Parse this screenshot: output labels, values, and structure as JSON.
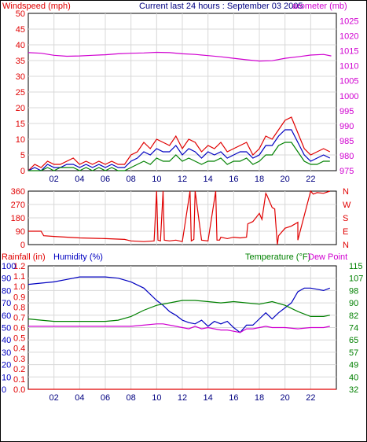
{
  "header": {
    "windspeed_label": "Windspeed (mph)",
    "title": "Current last 24 hours : September 03 2005",
    "barometer_label": "arometer (mb)"
  },
  "colors": {
    "red": "#e00000",
    "blue": "#0000c0",
    "green": "#008000",
    "magenta": "#d000d0",
    "grid": "#d8d8d8"
  },
  "chart_data": [
    {
      "type": "line",
      "name": "wind-barometer",
      "x_ticks": [
        "02",
        "04",
        "06",
        "08",
        "10",
        "12",
        "14",
        "16",
        "18",
        "20",
        "22"
      ],
      "xlim": [
        0,
        24
      ],
      "left_axis": {
        "label": "Windspeed (mph)",
        "ticks": [
          0,
          5,
          10,
          15,
          20,
          25,
          30,
          35,
          40,
          45,
          50
        ],
        "ylim": [
          0,
          50
        ]
      },
      "right_axis": {
        "label": "arometer (mb)",
        "ticks": [
          975,
          980,
          985,
          990,
          995,
          1000,
          1005,
          1010,
          1015,
          1020,
          1025
        ],
        "ylim": [
          975,
          1027.5
        ]
      },
      "series": [
        {
          "color": "#d000d0",
          "axis": "right",
          "x": [
            0,
            1,
            2,
            3,
            4,
            5,
            6,
            7,
            8,
            9,
            10,
            11,
            12,
            13,
            14,
            15,
            16,
            17,
            18,
            19,
            20,
            21,
            22,
            23,
            23.6
          ],
          "y": [
            1014.4,
            1014.2,
            1013.5,
            1013.2,
            1013.3,
            1013.5,
            1013.7,
            1014.0,
            1014.2,
            1014.3,
            1014.5,
            1014.4,
            1014.0,
            1013.8,
            1013.4,
            1013.0,
            1012.5,
            1012.0,
            1011.6,
            1011.7,
            1012.5,
            1013.0,
            1013.6,
            1013.8,
            1013.3
          ]
        },
        {
          "color": "#e00000",
          "axis": "left",
          "x": [
            0,
            0.5,
            1,
            1.5,
            2,
            2.5,
            3,
            3.5,
            4,
            4.5,
            5,
            5.5,
            6,
            6.5,
            7,
            7.5,
            8,
            8.5,
            9,
            9.5,
            10,
            10.5,
            11,
            11.5,
            12,
            12.5,
            13,
            13.5,
            14,
            14.5,
            15,
            15.5,
            16,
            16.5,
            17,
            17.5,
            18,
            18.5,
            19,
            19.5,
            20,
            20.5,
            21,
            21.5,
            22,
            22.5,
            23,
            23.5
          ],
          "y": [
            0,
            2,
            1,
            3,
            2,
            2,
            3,
            4,
            2,
            3,
            2,
            3,
            2,
            3,
            2,
            2,
            5,
            6,
            9,
            7,
            10,
            9,
            8,
            11,
            7,
            10,
            9,
            6,
            8,
            7,
            9,
            6,
            7,
            8,
            9,
            5,
            7,
            11,
            10,
            13,
            16,
            17,
            12,
            7,
            5,
            6,
            7,
            6
          ]
        },
        {
          "color": "#0000c0",
          "axis": "left",
          "x": [
            0,
            0.5,
            1,
            1.5,
            2,
            2.5,
            3,
            3.5,
            4,
            4.5,
            5,
            5.5,
            6,
            6.5,
            7,
            7.5,
            8,
            8.5,
            9,
            9.5,
            10,
            10.5,
            11,
            11.5,
            12,
            12.5,
            13,
            13.5,
            14,
            14.5,
            15,
            15.5,
            16,
            16.5,
            17,
            17.5,
            18,
            18.5,
            19,
            19.5,
            20,
            20.5,
            21,
            21.5,
            22,
            22.5,
            23,
            23.5
          ],
          "y": [
            0,
            1,
            0,
            2,
            1,
            1,
            2,
            2,
            1,
            2,
            1,
            2,
            1,
            2,
            1,
            1,
            3,
            4,
            6,
            5,
            7,
            6,
            6,
            8,
            5,
            7,
            6,
            4,
            6,
            5,
            6,
            4,
            5,
            6,
            6,
            4,
            5,
            8,
            8,
            11,
            13,
            13,
            9,
            5,
            3,
            4,
            5,
            4
          ]
        },
        {
          "color": "#008000",
          "axis": "left",
          "x": [
            0,
            0.5,
            1,
            1.5,
            2,
            2.5,
            3,
            3.5,
            4,
            4.5,
            5,
            5.5,
            6,
            6.5,
            7,
            7.5,
            8,
            8.5,
            9,
            9.5,
            10,
            10.5,
            11,
            11.5,
            12,
            12.5,
            13,
            13.5,
            14,
            14.5,
            15,
            15.5,
            16,
            16.5,
            17,
            17.5,
            18,
            18.5,
            19,
            19.5,
            20,
            20.5,
            21,
            21.5,
            22,
            22.5,
            23,
            23.5
          ],
          "y": [
            0,
            0,
            0,
            1,
            0,
            1,
            1,
            1,
            0,
            1,
            0,
            1,
            0,
            1,
            0,
            0,
            1,
            2,
            3,
            2,
            4,
            3,
            3,
            5,
            3,
            4,
            3,
            2,
            3,
            3,
            4,
            2,
            3,
            3,
            4,
            2,
            3,
            5,
            5,
            8,
            9,
            9,
            6,
            3,
            2,
            2,
            3,
            3
          ]
        }
      ]
    },
    {
      "type": "line",
      "name": "wind-direction",
      "xlim": [
        0,
        24
      ],
      "left_axis": {
        "ticks": [
          0,
          90,
          180,
          270,
          360
        ],
        "ylim": [
          0,
          360
        ]
      },
      "right_axis": {
        "ticks": [
          "N",
          "E",
          "S",
          "W",
          "N"
        ]
      },
      "series": [
        {
          "color": "#e00000",
          "x": [
            0,
            1,
            1.2,
            2,
            4,
            6,
            7.5,
            8,
            9,
            9.8,
            10,
            10.1,
            10.3,
            10.5,
            10.6,
            11,
            11.5,
            12,
            12.6,
            12.7,
            12.9,
            13,
            13.5,
            14,
            14.6,
            14.7,
            14.9,
            15,
            15.5,
            16,
            16.5,
            17,
            17.1,
            17.5,
            18,
            18.2,
            18.5,
            18.6,
            19,
            19.2,
            19.4,
            19.5,
            20,
            20.5,
            21,
            21,
            22,
            22.2,
            22.5,
            23,
            23.5
          ],
          "y": [
            90,
            90,
            60,
            55,
            45,
            40,
            35,
            25,
            20,
            25,
            360,
            30,
            25,
            360,
            30,
            25,
            30,
            20,
            360,
            25,
            35,
            360,
            30,
            25,
            360,
            30,
            30,
            50,
            40,
            50,
            45,
            50,
            140,
            155,
            210,
            170,
            345,
            330,
            250,
            240,
            0,
            60,
            110,
            125,
            150,
            30,
            360,
            340,
            350,
            345,
            360
          ]
        }
      ]
    },
    {
      "type": "line",
      "name": "temperature-humidity",
      "x_ticks": [
        "02",
        "04",
        "06",
        "08",
        "10",
        "12",
        "14",
        "16",
        "18",
        "20",
        "22"
      ],
      "xlim": [
        0,
        24
      ],
      "rain_axis": {
        "label": "Rainfall (in)",
        "ticks": [
          "0.0",
          "0.1",
          "0.2",
          "0.3",
          "0.4",
          "0.5",
          "0.6",
          "0.7",
          "0.8",
          "0.9",
          "1.0",
          "1.1",
          "1.2"
        ]
      },
      "humidity_axis": {
        "label": "Humidity (%)",
        "ticks": [
          0,
          10,
          20,
          30,
          40,
          50,
          60,
          70,
          80,
          90,
          100
        ],
        "ylim": [
          0,
          100
        ]
      },
      "temp_axis": {
        "label": "Temperature (°F)",
        "ticks": [
          32,
          40,
          49,
          57,
          65,
          74,
          82,
          90,
          98,
          107,
          115
        ]
      },
      "dew_label": "Dew Point",
      "series": [
        {
          "color": "#0000c0",
          "axis": "humidity",
          "x": [
            0,
            1,
            2,
            3,
            4,
            5,
            6,
            7,
            8,
            9,
            10,
            10.5,
            11,
            11.5,
            12,
            12.5,
            13,
            13.5,
            14,
            14.5,
            15,
            15.5,
            16,
            16.5,
            17,
            17.5,
            18,
            18.5,
            19,
            19.5,
            20,
            20.5,
            21,
            21.5,
            22,
            22.5,
            23,
            23.5
          ],
          "y": [
            85,
            86,
            87,
            89,
            91,
            91,
            91,
            90,
            87,
            82,
            72,
            68,
            63,
            60,
            56,
            54,
            53,
            56,
            51,
            55,
            53,
            55,
            50,
            46,
            52,
            52,
            57,
            62,
            57,
            62,
            66,
            70,
            79,
            82,
            82,
            81,
            80,
            82
          ]
        },
        {
          "color": "#008000",
          "axis": "humidity",
          "x": [
            0,
            1,
            2,
            3,
            4,
            5,
            6,
            7,
            8,
            9,
            10,
            11,
            12,
            13,
            14,
            15,
            16,
            17,
            18,
            19,
            20,
            21,
            22,
            23,
            23.5
          ],
          "y": [
            57,
            56,
            55,
            55,
            55,
            55,
            55,
            56,
            59,
            64,
            68,
            70,
            72,
            72,
            71,
            70,
            71,
            70,
            69,
            71,
            68,
            63,
            59,
            59,
            60
          ]
        },
        {
          "color": "#d000d0",
          "axis": "humidity",
          "x": [
            0,
            1,
            2,
            3,
            4,
            5,
            6,
            7,
            8,
            9,
            10,
            10.5,
            11,
            11.5,
            12,
            12.5,
            13,
            13.5,
            14,
            14.5,
            15,
            15.5,
            16,
            16.5,
            17,
            17.5,
            18,
            18.5,
            19,
            20,
            21,
            22,
            23,
            23.5
          ],
          "y": [
            51,
            51,
            51,
            51,
            51,
            51,
            51,
            51,
            51,
            52,
            53,
            53,
            52,
            51,
            50,
            49,
            51,
            49,
            50,
            49,
            48,
            48,
            47,
            46,
            49,
            49,
            50,
            51,
            50,
            50,
            49,
            50,
            50,
            51
          ]
        },
        {
          "color": "#e00000",
          "axis": "rain",
          "x": [
            0,
            24
          ],
          "y": [
            0,
            0
          ]
        }
      ]
    }
  ]
}
